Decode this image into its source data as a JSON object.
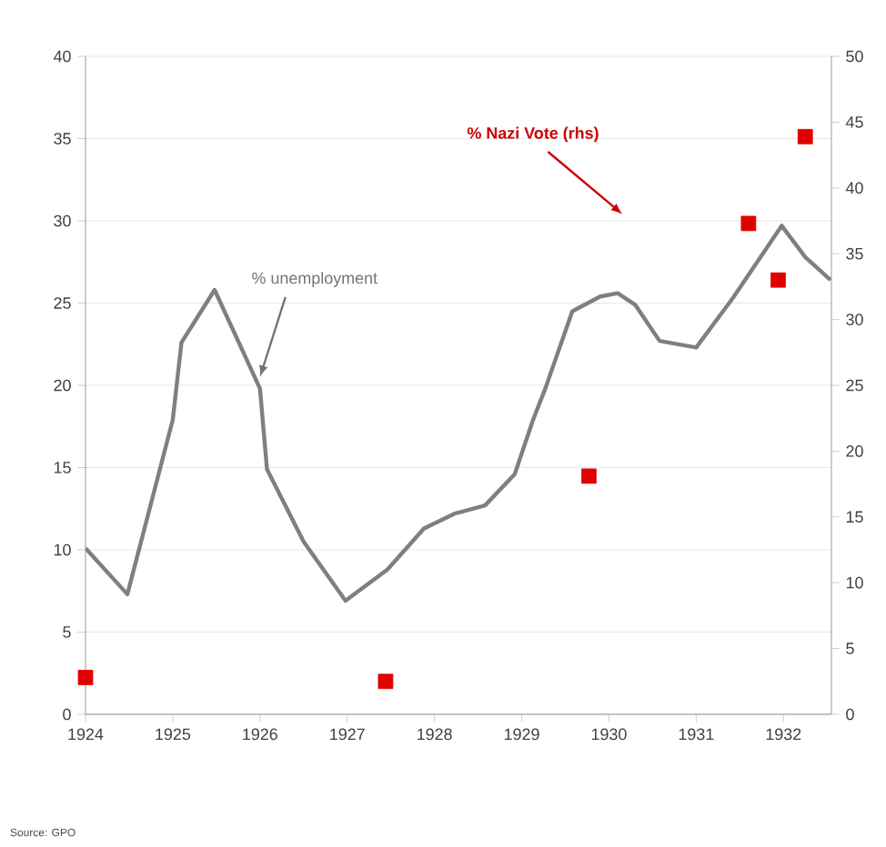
{
  "chart_data": {
    "type": "line",
    "xlim": [
      1924,
      1932.55
    ],
    "xticks": [
      1924,
      1925,
      1926,
      1927,
      1928,
      1929,
      1930,
      1931,
      1932
    ],
    "ylim": [
      0,
      40
    ],
    "yticks": [
      0,
      5,
      10,
      15,
      20,
      25,
      30,
      35,
      40
    ],
    "y2lim": [
      0,
      50
    ],
    "y2ticks": [
      0,
      5,
      10,
      15,
      20,
      25,
      30,
      35,
      40,
      45,
      50
    ],
    "grid": "y",
    "series": [
      {
        "color": "#7f7f7f",
        "marker": "none",
        "x": [
          1924.0,
          1924.48,
          1925.0,
          1925.1,
          1925.48,
          1926.0,
          1926.08,
          1926.5,
          1926.98,
          1927.46,
          1927.88,
          1928.23,
          1928.58,
          1928.92,
          1929.13,
          1929.27,
          1929.58,
          1929.9,
          1930.1,
          1930.3,
          1930.58,
          1931.0,
          1931.42,
          1931.98,
          1932.25,
          1932.54
        ],
        "values": [
          10.1,
          7.3,
          17.9,
          22.6,
          25.8,
          19.8,
          14.9,
          10.5,
          6.9,
          8.8,
          11.3,
          12.2,
          12.7,
          14.6,
          17.9,
          19.8,
          24.5,
          25.4,
          25.6,
          24.9,
          22.7,
          22.3,
          25.3,
          29.7,
          27.8,
          26.4
        ]
      },
      {
        "type": "scatter",
        "axis": "y2",
        "color": "#e00000",
        "marker": "square",
        "x": [
          1924.0,
          1927.44,
          1929.77,
          1931.6,
          1931.94,
          1932.25
        ],
        "values": [
          2.8,
          2.5,
          18.1,
          37.3,
          33.0,
          43.9
        ]
      }
    ],
    "annotations": [
      {
        "text": "% unemployment",
        "x": 1926.0,
        "y": 20.5
      },
      "% Nazi Vote (rhs)",
      "Source: GPO"
    ]
  }
}
